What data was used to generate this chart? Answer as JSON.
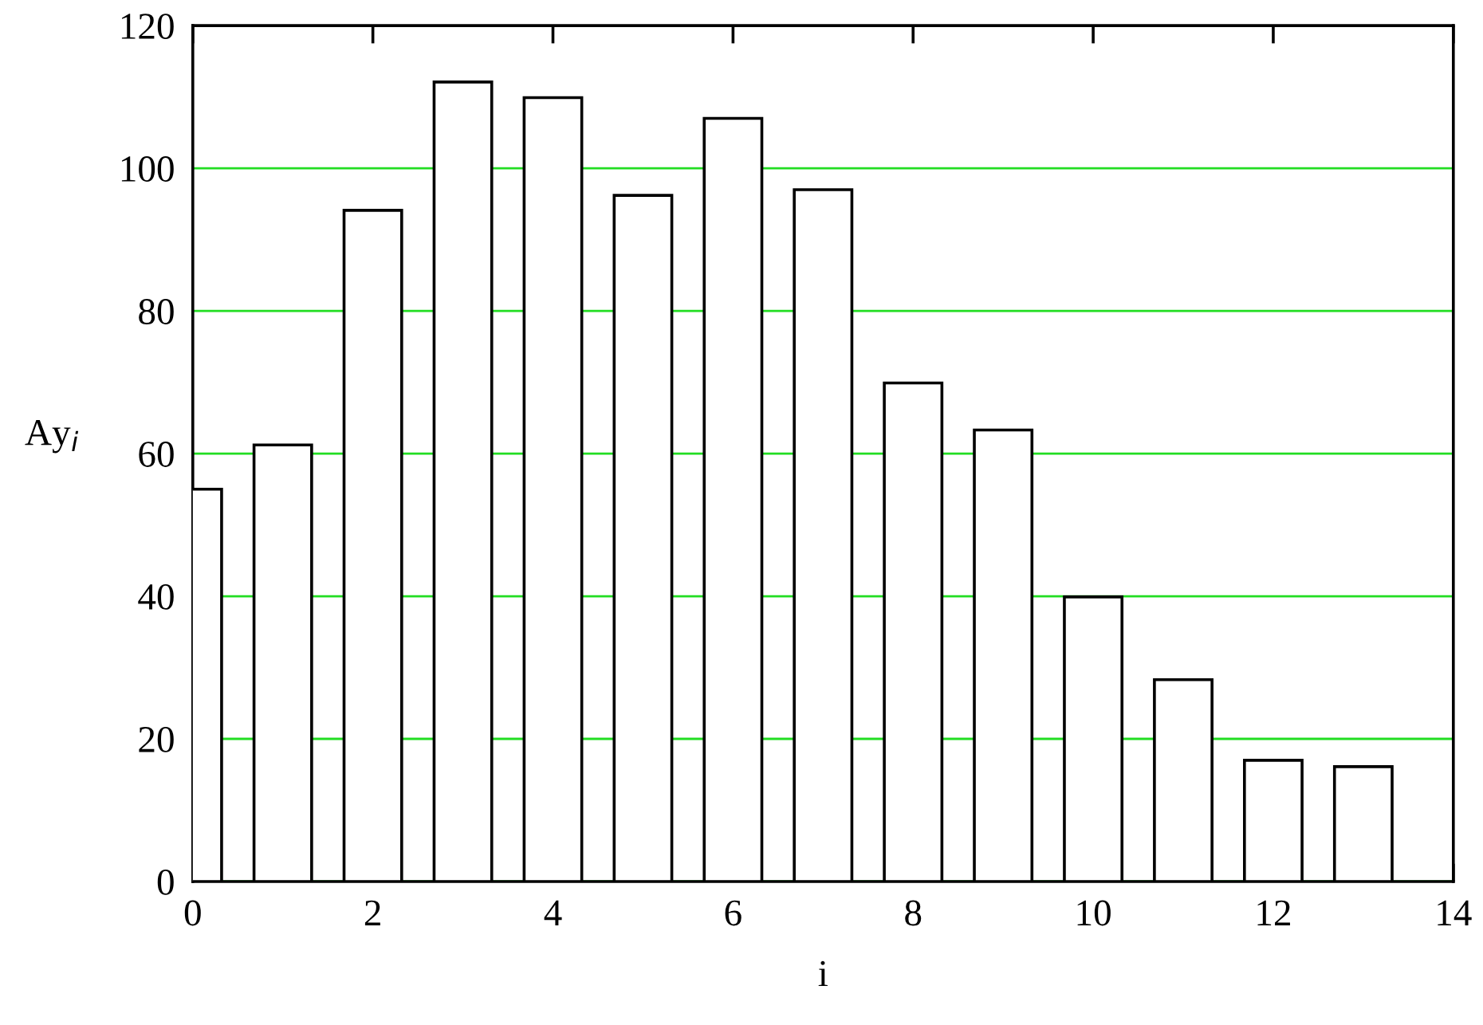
{
  "chart_data": {
    "type": "bar",
    "xlabel": "i",
    "ylabel": "Ay$_{i}$",
    "x": [
      0,
      1,
      2,
      3,
      4,
      5,
      6,
      7,
      8,
      9,
      10,
      11,
      12,
      13
    ],
    "values": [
      55,
      61.2,
      94.1,
      112.1,
      109.9,
      96.2,
      107,
      97,
      69.9,
      63.3,
      39.9,
      28.3,
      17,
      16.1
    ],
    "color": "#ffffff",
    "xlim": [
      0,
      14
    ],
    "xticks": [
      0,
      2,
      4,
      6,
      8,
      10,
      12,
      14
    ],
    "ylim": [
      0,
      120
    ],
    "yticks": [
      0,
      20,
      40,
      60,
      80,
      100,
      120
    ],
    "grid": "y"
  }
}
